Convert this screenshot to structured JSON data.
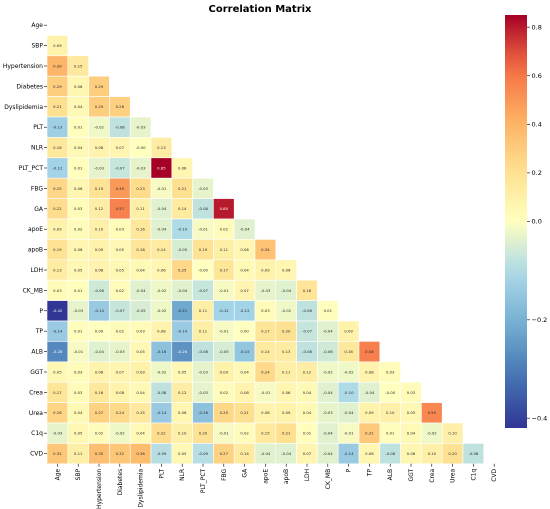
{
  "chart_data": {
    "type": "heatmap",
    "title": "Correlation Matrix",
    "variables": [
      "Age",
      "SBP",
      "Hypertension",
      "Diabetes",
      "Dyslipidemia",
      "PLT",
      "NLR",
      "PLT_PCT",
      "FBG",
      "GA",
      "apoE",
      "apoB",
      "LDH",
      "CK_MB",
      "P",
      "TP",
      "ALB",
      "GGT",
      "Crea",
      "Urea",
      "C1q",
      "CVD"
    ],
    "mask": "upper-triangle-including-diagonal",
    "rows": [
      [],
      [
        0.09
      ],
      [
        0.39,
        0.15
      ],
      [
        0.29,
        0.06,
        0.29
      ],
      [
        0.21,
        0.04,
        0.29,
        0.28
      ],
      [
        -0.13,
        0.01,
        -0.02,
        -0.08,
        -0.03
      ],
      [
        0.16,
        0.04,
        0.08,
        0.07,
        -0.0,
        0.13
      ],
      [
        -0.12,
        0.01,
        -0.03,
        -0.07,
        -0.03,
        0.85,
        0.06
      ],
      [
        0.25,
        0.06,
        0.19,
        0.49,
        0.23,
        -0.01,
        0.21,
        -0.03
      ],
      [
        0.22,
        0.03,
        0.12,
        0.57,
        0.11,
        -0.04,
        0.14,
        -0.08,
        0.8
      ],
      [
        0.09,
        0.02,
        0.1,
        0.03,
        0.16,
        -0.04,
        -0.1,
        -0.01,
        0.02,
        -0.04
      ],
      [
        0.19,
        0.06,
        0.09,
        0.05,
        0.18,
        0.14,
        -0.05,
        0.19,
        0.11,
        0.06,
        0.34
      ],
      [
        0.13,
        0.05,
        0.08,
        0.05,
        0.04,
        0.06,
        0.25,
        -0.0,
        0.17,
        0.04,
        0.09,
        0.06
      ],
      [
        0.03,
        0.01,
        -0.06,
        0.02,
        -0.04,
        -0.02,
        -0.04,
        -0.07,
        -0.01,
        0.07,
        -0.03,
        -0.04,
        0.18
      ],
      [
        -0.42,
        -0.03,
        -0.14,
        -0.07,
        -0.05,
        -0.02,
        -0.22,
        0.11,
        -0.12,
        -0.12,
        0.03,
        -0.02,
        -0.08,
        0.01
      ],
      [
        -0.14,
        0.01,
        0.0,
        0.02,
        0.03,
        0.08,
        -0.14,
        0.11,
        -0.01,
        0.0,
        0.17,
        0.2,
        -0.07,
        -0.04,
        0.09
      ],
      [
        -0.28,
        -0.01,
        -0.04,
        -0.03,
        0.05,
        -0.16,
        -0.26,
        -0.08,
        -0.05,
        -0.15,
        0.14,
        0.13,
        -0.08,
        -0.06,
        0.16,
        0.58
      ],
      [
        0.05,
        0.03,
        0.08,
        0.07,
        0.09,
        -0.02,
        0.05,
        -0.03,
        0.09,
        0.04,
        0.24,
        0.11,
        0.12,
        -0.02,
        -0.02,
        0.08,
        0.03
      ],
      [
        0.17,
        0.03,
        0.16,
        0.08,
        0.04,
        -0.08,
        0.12,
        -0.03,
        0.02,
        0.08,
        -0.01,
        0.06,
        0.04,
        -0.04,
        -0.1,
        -0.04,
        -0.0,
        0.03
      ],
      [
        0.26,
        0.04,
        0.27,
        0.24,
        0.15,
        -0.14,
        0.06,
        -0.16,
        0.25,
        0.21,
        0.08,
        0.09,
        0.04,
        -0.03,
        -0.04,
        0.09,
        0.1,
        0.05,
        0.55
      ],
      [
        -0.03,
        0.05,
        0.02,
        -0.02,
        0.04,
        0.22,
        0.1,
        0.2,
        -0.01,
        0.02,
        0.15,
        0.21,
        0.01,
        -0.04,
        -0.01,
        0.31,
        0.01,
        0.04,
        -0.02,
        0.1
      ],
      [
        0.32,
        0.11,
        0.35,
        0.32,
        0.36,
        -0.09,
        0.05,
        -0.09,
        0.27,
        0.14,
        -0.04,
        -0.04,
        0.07,
        -0.04,
        -0.14,
        0.06,
        -0.08,
        0.06,
        0.1,
        0.2,
        -0.08
      ]
    ],
    "colormap": "RdYlBu_r",
    "vmin": -0.42,
    "vmax": 0.85,
    "colorbar_ticks": [
      -0.4,
      -0.2,
      0.0,
      0.2,
      0.4,
      0.6,
      0.8
    ],
    "colorbar_tick_labels": [
      "−0.4",
      "−0.2",
      "0.0",
      "0.2",
      "0.4",
      "0.6",
      "0.8"
    ]
  }
}
